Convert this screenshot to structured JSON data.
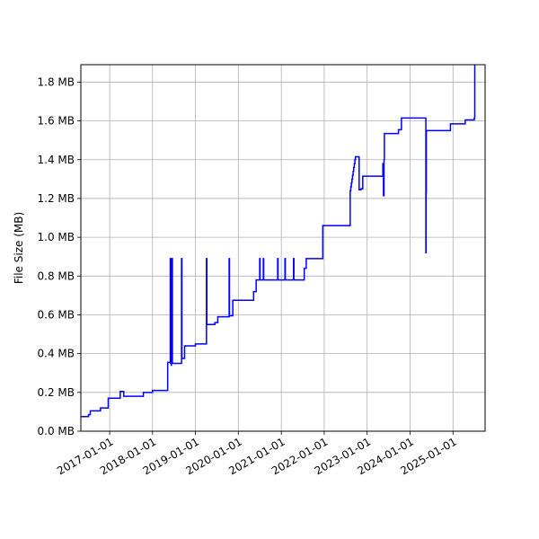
{
  "chart_data": {
    "type": "line",
    "title": "",
    "xlabel": "",
    "ylabel": "File Size (MB)",
    "xlim": [
      "2016-05-01",
      "2025-10-01"
    ],
    "ylim": [
      0,
      1.89
    ],
    "grid": true,
    "line_color": "#0000ff",
    "x_ticks": [
      {
        "date": "2017-01-01",
        "label": "2017-01-01"
      },
      {
        "date": "2018-01-01",
        "label": "2018-01-01"
      },
      {
        "date": "2019-01-01",
        "label": "2019-01-01"
      },
      {
        "date": "2020-01-01",
        "label": "2020-01-01"
      },
      {
        "date": "2021-01-01",
        "label": "2021-01-01"
      },
      {
        "date": "2022-01-01",
        "label": "2022-01-01"
      },
      {
        "date": "2023-01-01",
        "label": "2023-01-01"
      },
      {
        "date": "2024-01-01",
        "label": "2024-01-01"
      },
      {
        "date": "2025-01-01",
        "label": "2025-01-01"
      }
    ],
    "y_ticks": [
      {
        "value": 0.0,
        "label": "0.0 MB"
      },
      {
        "value": 0.2,
        "label": "0.2 MB"
      },
      {
        "value": 0.4,
        "label": "0.4 MB"
      },
      {
        "value": 0.6,
        "label": "0.6 MB"
      },
      {
        "value": 0.8,
        "label": "0.8 MB"
      },
      {
        "value": 1.0,
        "label": "1.0 MB"
      },
      {
        "value": 1.2,
        "label": "1.2 MB"
      },
      {
        "value": 1.4,
        "label": "1.4 MB"
      },
      {
        "value": 1.6,
        "label": "1.6 MB"
      },
      {
        "value": 1.8,
        "label": "1.8 MB"
      }
    ],
    "series": [
      {
        "style": "steps-post",
        "points": [
          [
            "2016-05-01",
            0.075
          ],
          [
            "2016-07-05",
            0.085
          ],
          [
            "2016-07-20",
            0.105
          ],
          [
            "2016-10-15",
            0.12
          ],
          [
            "2016-12-20",
            0.17
          ],
          [
            "2017-04-01",
            0.205
          ],
          [
            "2017-05-01",
            0.18
          ],
          [
            "2017-10-15",
            0.2
          ],
          [
            "2018-01-01",
            0.21
          ],
          [
            "2018-05-10",
            0.355
          ],
          [
            "2018-06-01",
            0.89
          ],
          [
            "2018-06-03",
            0.35
          ],
          [
            "2018-06-06",
            0.89
          ],
          [
            "2018-06-09",
            0.34
          ],
          [
            "2018-06-11",
            0.89
          ],
          [
            "2018-06-14",
            0.35
          ],
          [
            "2018-06-16",
            0.89
          ],
          [
            "2018-06-19",
            0.35
          ],
          [
            "2018-09-05",
            0.89
          ],
          [
            "2018-09-08",
            0.375
          ],
          [
            "2018-10-01",
            0.44
          ],
          [
            "2019-01-01",
            0.45
          ],
          [
            "2019-04-05",
            0.89
          ],
          [
            "2019-04-08",
            0.55
          ],
          [
            "2019-06-15",
            0.56
          ],
          [
            "2019-07-10",
            0.59
          ],
          [
            "2019-10-15",
            0.89
          ],
          [
            "2019-10-18",
            0.595
          ],
          [
            "2019-11-15",
            0.675
          ],
          [
            "2020-05-10",
            0.72
          ],
          [
            "2020-06-01",
            0.78
          ],
          [
            "2020-07-01",
            0.89
          ],
          [
            "2020-07-04",
            0.78
          ],
          [
            "2020-08-01",
            0.89
          ],
          [
            "2020-08-04",
            0.78
          ],
          [
            "2020-12-01",
            0.89
          ],
          [
            "2020-12-04",
            0.78
          ],
          [
            "2021-02-01",
            0.89
          ],
          [
            "2021-02-04",
            0.78
          ],
          [
            "2021-04-15",
            0.89
          ],
          [
            "2021-04-18",
            0.78
          ],
          [
            "2021-07-15",
            0.84
          ],
          [
            "2021-08-01",
            0.89
          ],
          [
            "2021-12-20",
            1.06
          ],
          [
            "2022-08-10",
            1.24
          ],
          [
            "2022-08-15",
            1.26
          ],
          [
            "2022-08-20",
            1.28
          ],
          [
            "2022-08-25",
            1.3
          ],
          [
            "2022-08-30",
            1.32
          ],
          [
            "2022-09-04",
            1.34
          ],
          [
            "2022-09-09",
            1.36
          ],
          [
            "2022-09-14",
            1.38
          ],
          [
            "2022-09-19",
            1.4
          ],
          [
            "2022-09-24",
            1.415
          ],
          [
            "2022-10-25",
            1.245
          ],
          [
            "2022-11-10",
            1.25
          ],
          [
            "2022-11-25",
            1.315
          ],
          [
            "2023-05-15",
            1.38
          ],
          [
            "2023-05-20",
            1.215
          ],
          [
            "2023-05-25",
            1.4
          ],
          [
            "2023-05-28",
            1.535
          ],
          [
            "2023-09-25",
            1.555
          ],
          [
            "2023-10-20",
            1.615
          ],
          [
            "2024-05-15",
            0.92
          ],
          [
            "2024-05-17",
            1.23
          ],
          [
            "2024-05-19",
            1.55
          ],
          [
            "2024-12-10",
            1.585
          ],
          [
            "2025-04-15",
            1.605
          ],
          [
            "2025-07-01",
            1.615
          ],
          [
            "2025-07-05",
            1.89
          ]
        ]
      }
    ]
  }
}
